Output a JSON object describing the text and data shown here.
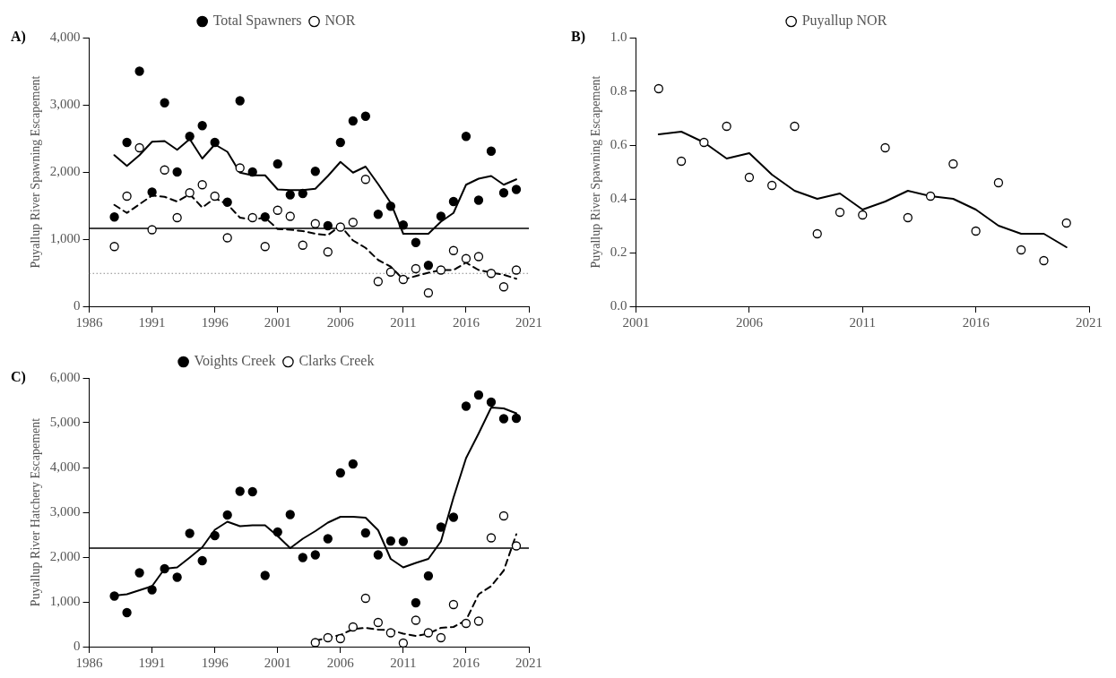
{
  "chart_data": [
    {
      "type": "scatter",
      "title": "A)",
      "ylabel": "Puyallup River Spawning Escapement",
      "legend": "top",
      "grid": false,
      "x": [
        1988,
        1989,
        1990,
        1991,
        1992,
        1993,
        1994,
        1995,
        1996,
        1997,
        1998,
        1999,
        2000,
        2001,
        2002,
        2003,
        2004,
        2005,
        2006,
        2007,
        2008,
        2009,
        2010,
        2011,
        2012,
        2013,
        2014,
        2015,
        2016,
        2017,
        2018,
        2019,
        2020
      ],
      "xlim": [
        1986,
        2021
      ],
      "xticks": [
        1986,
        1991,
        1996,
        2001,
        2006,
        2011,
        2016,
        2021
      ],
      "ylim": [
        0,
        4000
      ],
      "yticks": [
        0,
        {
          "value": 1000,
          "label": "1,000"
        },
        {
          "value": 2000,
          "label": "2,000"
        },
        {
          "value": 3000,
          "label": "3,000"
        },
        {
          "value": 4000,
          "label": "4,000"
        }
      ],
      "ref_lines": [
        {
          "axis": "y",
          "value": 1160,
          "color": "#000000",
          "line_style": "solid"
        },
        {
          "axis": "y",
          "value": 490,
          "color": "#888888",
          "line_style": "dotted"
        }
      ],
      "series": [
        {
          "name": "Total Spawners",
          "color": "#000000",
          "marker": "circle",
          "values": [
            1330,
            2440,
            3500,
            1700,
            3030,
            2000,
            2530,
            2690,
            2440,
            1550,
            3060,
            2000,
            1330,
            2120,
            1660,
            1680,
            2010,
            1200,
            2440,
            2760,
            2830,
            1370,
            1490,
            1210,
            950,
            610,
            1340,
            1560,
            2530,
            1580,
            2310,
            1690,
            1740
          ]
        },
        {
          "name": "NOR",
          "color": "#ffffff",
          "marker": "circle",
          "values": [
            890,
            1640,
            2360,
            1140,
            2030,
            1320,
            1690,
            1810,
            1640,
            1020,
            2060,
            1320,
            890,
            1430,
            1340,
            910,
            1230,
            810,
            1180,
            1250,
            1890,
            370,
            510,
            400,
            560,
            200,
            540,
            830,
            710,
            740,
            490,
            290,
            540
          ]
        },
        {
          "type": "line",
          "color": "#000000",
          "marker": "none",
          "line_style": "solid",
          "values": [
            2250,
            2090,
            2250,
            2450,
            2460,
            2330,
            2490,
            2200,
            2410,
            2300,
            1990,
            1950,
            1950,
            1740,
            1730,
            1730,
            1750,
            1940,
            2150,
            1990,
            2080,
            1820,
            1540,
            1080,
            1080,
            1080,
            1260,
            1390,
            1810,
            1900,
            1940,
            1810,
            1890
          ]
        },
        {
          "type": "line",
          "color": "#000000",
          "marker": "none",
          "line_style": "dashed",
          "values": [
            1510,
            1390,
            1520,
            1650,
            1630,
            1560,
            1670,
            1470,
            1610,
            1520,
            1320,
            1290,
            1320,
            1150,
            1140,
            1120,
            1080,
            1060,
            1200,
            980,
            870,
            690,
            590,
            400,
            450,
            500,
            540,
            540,
            650,
            540,
            500,
            470,
            410
          ]
        }
      ]
    },
    {
      "type": "scatter",
      "title": "B)",
      "ylabel": "Puyallup River Spawning Escapement",
      "legend": "top",
      "grid": false,
      "x": [
        2002,
        2003,
        2004,
        2005,
        2006,
        2007,
        2008,
        2009,
        2010,
        2011,
        2012,
        2013,
        2014,
        2015,
        2016,
        2017,
        2018,
        2019,
        2020
      ],
      "xlim": [
        2001,
        2021
      ],
      "xticks": [
        2001,
        2006,
        2011,
        2016,
        2021
      ],
      "ylim": [
        0,
        1
      ],
      "yticks": [
        {
          "value": 0,
          "label": "0.0"
        },
        0.2,
        0.4,
        0.6,
        0.8,
        {
          "value": 1,
          "label": "1.0"
        }
      ],
      "series": [
        {
          "name": "Puyallup NOR",
          "color": "#ffffff",
          "marker": "circle",
          "values": [
            0.81,
            0.54,
            0.61,
            0.67,
            0.48,
            0.45,
            0.67,
            0.27,
            0.35,
            0.34,
            0.59,
            0.33,
            0.41,
            0.53,
            0.28,
            0.46,
            0.21,
            0.17,
            0.31
          ]
        },
        {
          "type": "line",
          "color": "#000000",
          "marker": "none",
          "line_style": "solid",
          "values": [
            0.64,
            0.65,
            0.61,
            0.55,
            0.57,
            0.49,
            0.43,
            0.4,
            0.42,
            0.36,
            0.39,
            0.43,
            0.41,
            0.4,
            0.36,
            0.3,
            0.27,
            0.27,
            0.22
          ]
        }
      ]
    },
    {
      "type": "scatter",
      "title": "C)",
      "ylabel": "Puyallup River Hatchery Escapement",
      "legend": "top",
      "grid": false,
      "x": [
        1988,
        1989,
        1990,
        1991,
        1992,
        1993,
        1994,
        1995,
        1996,
        1997,
        1998,
        1999,
        2000,
        2001,
        2002,
        2003,
        2004,
        2005,
        2006,
        2007,
        2008,
        2009,
        2010,
        2011,
        2012,
        2013,
        2014,
        2015,
        2016,
        2017,
        2018,
        2019,
        2020
      ],
      "xlim": [
        1986,
        2021
      ],
      "xticks": [
        1986,
        1991,
        1996,
        2001,
        2006,
        2011,
        2016,
        2021
      ],
      "ylim": [
        0,
        6000
      ],
      "yticks": [
        0,
        {
          "value": 1000,
          "label": "1,000"
        },
        {
          "value": 2000,
          "label": "2,000"
        },
        {
          "value": 3000,
          "label": "3,000"
        },
        {
          "value": 4000,
          "label": "4,000"
        },
        {
          "value": 5000,
          "label": "5,000"
        },
        {
          "value": 6000,
          "label": "6,000"
        }
      ],
      "ref_lines": [
        {
          "axis": "y",
          "value": 2200,
          "color": "#000000",
          "line_style": "solid"
        }
      ],
      "series": [
        {
          "name": "Voights Creek",
          "color": "#000000",
          "marker": "circle",
          "values": [
            1130,
            760,
            1650,
            1270,
            1740,
            1550,
            2530,
            1920,
            2480,
            2940,
            3470,
            3460,
            1590,
            2560,
            2950,
            1990,
            2050,
            2410,
            3880,
            4080,
            2540,
            2050,
            2360,
            2350,
            980,
            1580,
            2670,
            2890,
            5370,
            5620,
            5460,
            5090,
            5100
          ]
        },
        {
          "name": "Clarks Creek",
          "color": "#ffffff",
          "marker": "circle",
          "x": [
            2004,
            2005,
            2006,
            2007,
            2008,
            2009,
            2010,
            2011,
            2012,
            2013,
            2014,
            2015,
            2016,
            2017,
            2018,
            2019,
            2020
          ],
          "values": [
            90,
            200,
            180,
            440,
            1080,
            540,
            310,
            80,
            590,
            310,
            200,
            940,
            520,
            570,
            2430,
            2920,
            2250
          ]
        },
        {
          "type": "line",
          "color": "#000000",
          "marker": "none",
          "line_style": "solid",
          "values": [
            1140,
            1170,
            1260,
            1350,
            1740,
            1770,
            1990,
            2220,
            2610,
            2790,
            2690,
            2710,
            2710,
            2470,
            2200,
            2410,
            2580,
            2770,
            2900,
            2900,
            2880,
            2600,
            1960,
            1770,
            1870,
            1960,
            2350,
            3330,
            4210,
            4760,
            5340,
            5320,
            5210
          ]
        },
        {
          "type": "line",
          "color": "#000000",
          "marker": "none",
          "line_style": "dashed",
          "x": [
            2004,
            2005,
            2006,
            2007,
            2008,
            2009,
            2010,
            2011,
            2012,
            2013,
            2014,
            2015,
            2016,
            2017,
            2018,
            2019,
            2020
          ],
          "values": [
            130,
            200,
            260,
            390,
            420,
            380,
            370,
            290,
            240,
            290,
            420,
            440,
            590,
            1170,
            1350,
            1700,
            2510
          ]
        }
      ]
    }
  ]
}
